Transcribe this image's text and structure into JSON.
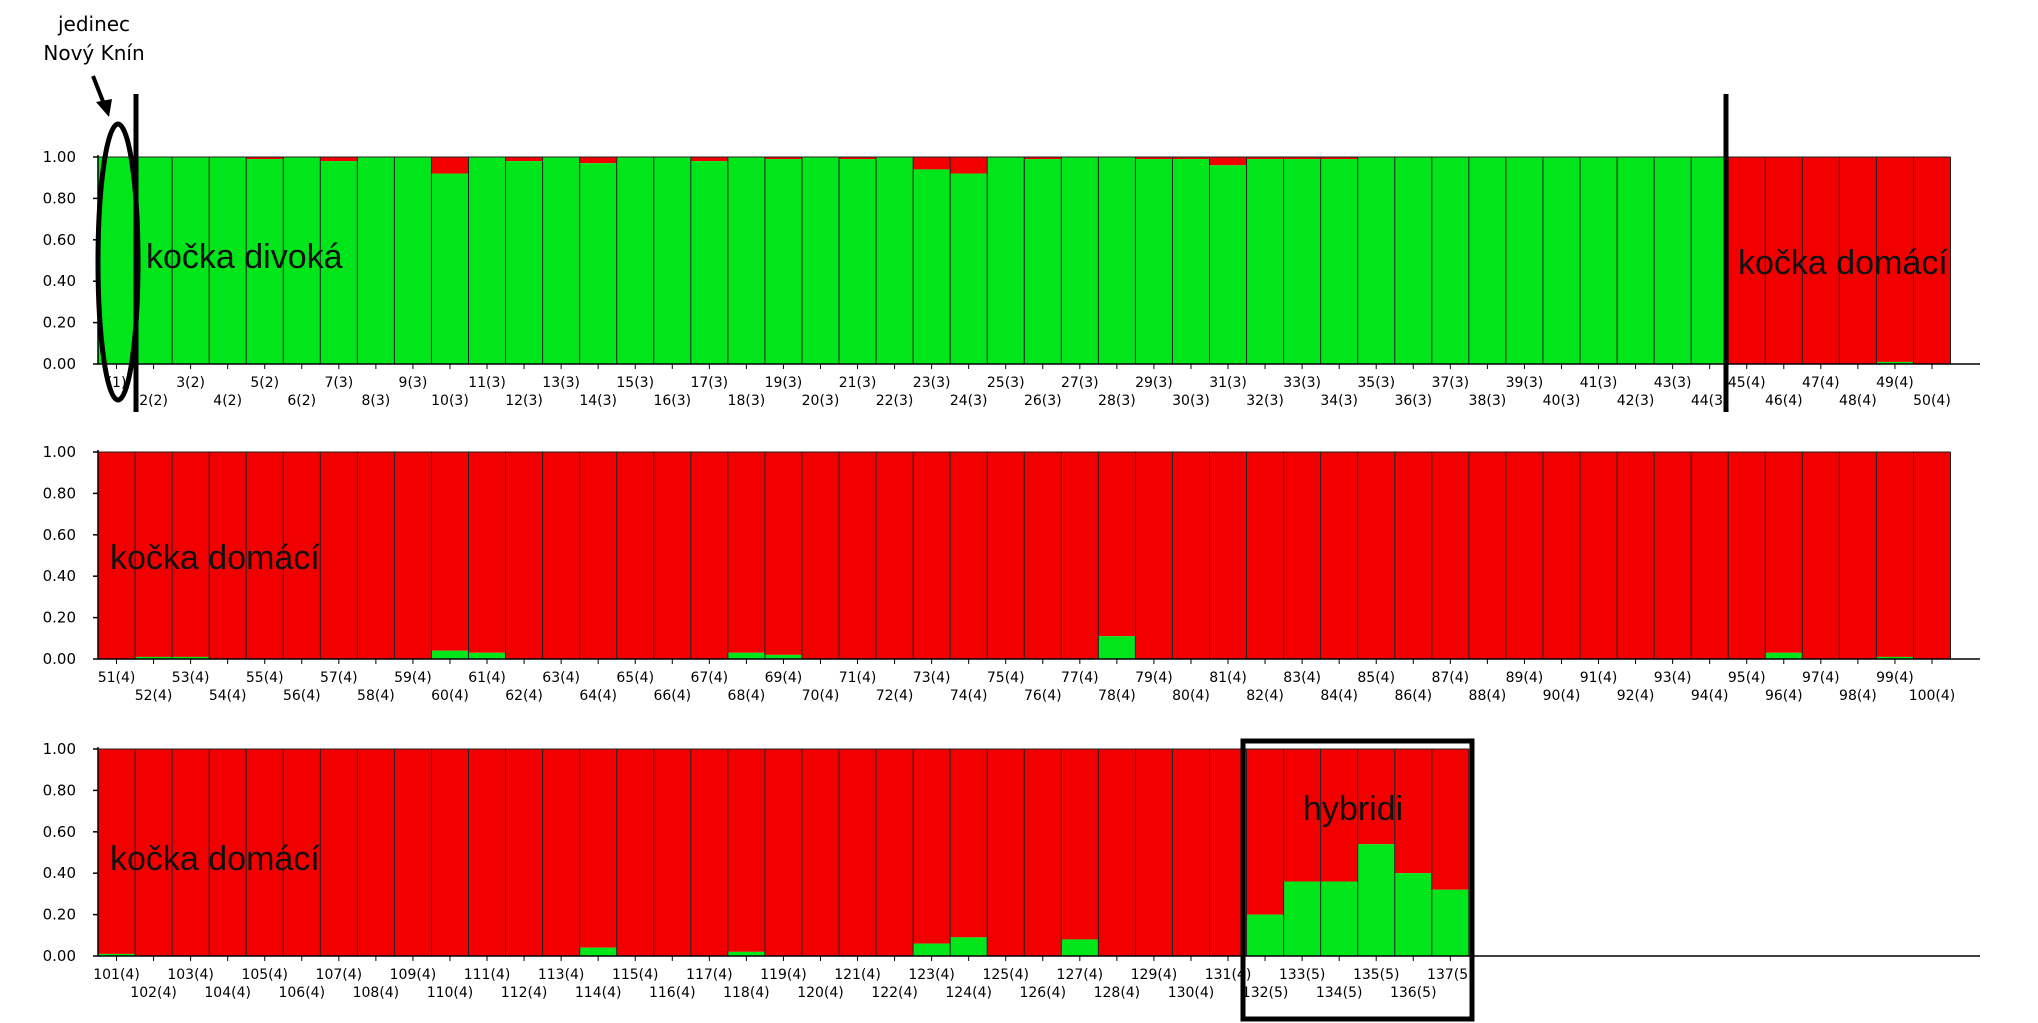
{
  "chart_data": {
    "type": "bar",
    "stacked": true,
    "ylim": [
      0,
      1
    ],
    "yticks": [
      "1.00",
      "0.80",
      "0.60",
      "0.40",
      "0.20",
      "0.00"
    ],
    "colors": {
      "wild": "#00e61a",
      "domestic": "#f20000"
    },
    "panels": [
      {
        "start": 1,
        "end": 50,
        "labels": [
          "(1)",
          "2(2)",
          "3(2)",
          "4(2)",
          "5(2)",
          "6(2)",
          "7(3)",
          "8(3)",
          "9(3)",
          "10(3)",
          "11(3)",
          "12(3)",
          "13(3)",
          "14(3)",
          "15(3)",
          "16(3)",
          "17(3)",
          "18(3)",
          "19(3)",
          "20(3)",
          "21(3)",
          "22(3)",
          "23(3)",
          "24(3)",
          "25(3)",
          "26(3)",
          "27(3)",
          "28(3)",
          "29(3)",
          "30(3)",
          "31(3)",
          "32(3)",
          "33(3)",
          "34(3)",
          "35(3)",
          "36(3)",
          "37(3)",
          "38(3)",
          "39(3)",
          "40(3)",
          "41(3)",
          "42(3)",
          "43(3)",
          "44(3)",
          "45(4)",
          "46(4)",
          "47(4)",
          "48(4)",
          "49(4)",
          "50(4)"
        ]
      },
      {
        "start": 51,
        "end": 100,
        "labels": [
          "51(4)",
          "52(4)",
          "53(4)",
          "54(4)",
          "55(4)",
          "56(4)",
          "57(4)",
          "58(4)",
          "59(4)",
          "60(4)",
          "61(4)",
          "62(4)",
          "63(4)",
          "64(4)",
          "65(4)",
          "66(4)",
          "67(4)",
          "68(4)",
          "69(4)",
          "70(4)",
          "71(4)",
          "72(4)",
          "73(4)",
          "74(4)",
          "75(4)",
          "76(4)",
          "77(4)",
          "78(4)",
          "79(4)",
          "80(4)",
          "81(4)",
          "82(4)",
          "83(4)",
          "84(4)",
          "85(4)",
          "86(4)",
          "87(4)",
          "88(4)",
          "89(4)",
          "90(4)",
          "91(4)",
          "92(4)",
          "93(4)",
          "94(4)",
          "95(4)",
          "96(4)",
          "97(4)",
          "98(4)",
          "99(4)",
          "100(4)"
        ]
      },
      {
        "start": 101,
        "end": 137,
        "labels": [
          "101(4)",
          "102(4)",
          "103(4)",
          "104(4)",
          "105(4)",
          "106(4)",
          "107(4)",
          "108(4)",
          "109(4)",
          "110(4)",
          "111(4)",
          "112(4)",
          "113(4)",
          "114(4)",
          "115(4)",
          "116(4)",
          "117(4)",
          "118(4)",
          "119(4)",
          "120(4)",
          "121(4)",
          "122(4)",
          "123(4)",
          "124(4)",
          "125(4)",
          "126(4)",
          "127(4)",
          "128(4)",
          "129(4)",
          "130(4)",
          "131(4)",
          "132(5)",
          "133(5)",
          "134(5)",
          "135(5)",
          "136(5)",
          "137(5)"
        ]
      }
    ],
    "green_fraction": [
      1.0,
      1.0,
      1.0,
      1.0,
      0.99,
      1.0,
      0.98,
      1.0,
      1.0,
      0.92,
      1.0,
      0.98,
      1.0,
      0.97,
      1.0,
      1.0,
      0.98,
      1.0,
      0.99,
      1.0,
      0.99,
      1.0,
      0.94,
      0.92,
      1.0,
      0.99,
      1.0,
      1.0,
      0.99,
      0.99,
      0.96,
      0.99,
      0.99,
      0.99,
      1.0,
      1.0,
      1.0,
      1.0,
      1.0,
      1.0,
      1.0,
      1.0,
      1.0,
      1.0,
      0.0,
      0.0,
      0.0,
      0.0,
      0.01,
      0.0,
      0.0,
      0.01,
      0.01,
      0.0,
      0.0,
      0.0,
      0.0,
      0.0,
      0.0,
      0.04,
      0.03,
      0.0,
      0.0,
      0.0,
      0.0,
      0.0,
      0.0,
      0.03,
      0.02,
      0.0,
      0.0,
      0.0,
      0.0,
      0.0,
      0.0,
      0.0,
      0.0,
      0.11,
      0.0,
      0.0,
      0.0,
      0.0,
      0.0,
      0.0,
      0.0,
      0.0,
      0.0,
      0.0,
      0.0,
      0.0,
      0.0,
      0.0,
      0.0,
      0.0,
      0.0,
      0.03,
      0.0,
      0.0,
      0.01,
      0.0,
      0.01,
      0.0,
      0.0,
      0.0,
      0.0,
      0.0,
      0.0,
      0.0,
      0.0,
      0.0,
      0.0,
      0.0,
      0.0,
      0.04,
      0.0,
      0.0,
      0.0,
      0.02,
      0.0,
      0.0,
      0.0,
      0.0,
      0.06,
      0.09,
      0.0,
      0.0,
      0.08,
      0.0,
      0.0,
      0.0,
      0.0,
      0.2,
      0.36,
      0.36,
      0.54,
      0.4,
      0.32
    ]
  },
  "annotations": {
    "individual_note_line1": "jedinec",
    "individual_note_line2": "Nový Knín",
    "wild_cat": "kočka divoká",
    "domestic_cat": "kočka domácí",
    "hybrids": "hybridi"
  }
}
